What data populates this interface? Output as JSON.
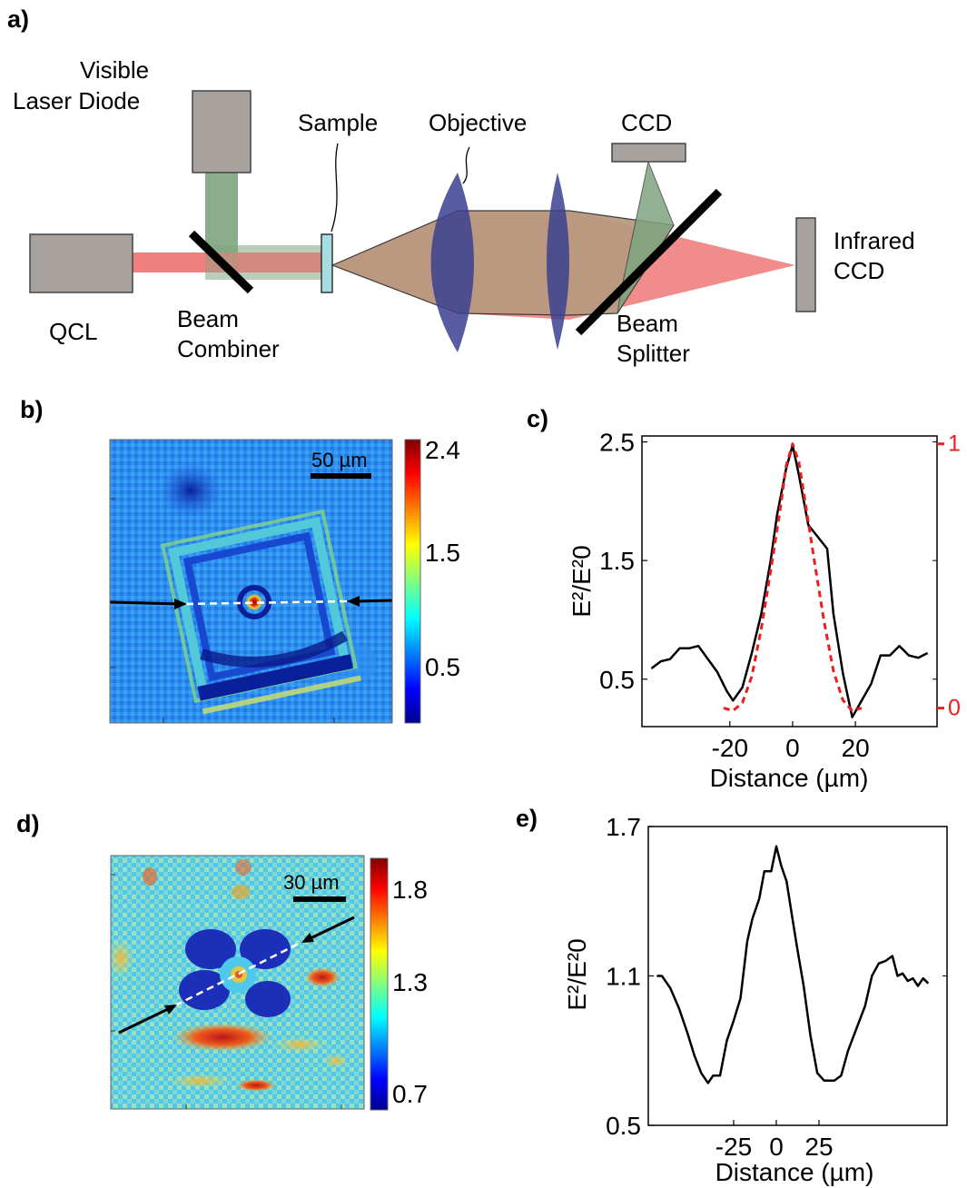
{
  "panel_labels": {
    "a": "a)",
    "b": "b)",
    "c": "c)",
    "d": "d)",
    "e": "e)"
  },
  "setup": {
    "visible_laser_line1": "Visible",
    "visible_laser_line2": "Laser Diode",
    "sample": "Sample",
    "objective": "Objective",
    "ccd": "CCD",
    "infrared_line1": "Infrared",
    "infrared_line2": "CCD",
    "qcl": "QCL",
    "combiner_line1": "Beam",
    "combiner_line2": "Combiner",
    "splitter_line1": "Beam",
    "splitter_line2": "Splitter"
  },
  "colors": {
    "qcl_beam": "#f08080",
    "visible_beam": "#7fa47f",
    "device_gray": "#a8a29e",
    "lens_blue": "#3b3f8f",
    "overlap_brown": "#b89a80",
    "sample_cyan": "#a6dde3",
    "red_fit": "#e8201e"
  },
  "map_b": {
    "scale_label": "50 µm",
    "colorbar_ticks": [
      "2.4",
      "1.5",
      "0.5"
    ]
  },
  "map_d": {
    "scale_label": "30 µm",
    "colorbar_ticks": [
      "1.8",
      "1.3",
      "0.7"
    ]
  },
  "chart_data": [
    {
      "panel": "c",
      "type": "line",
      "xlabel": "Distance (µm)",
      "ylabel": "E²/E²0",
      "xticks": [
        -20,
        0,
        20
      ],
      "yticks": [
        0.5,
        1.5,
        2.5
      ],
      "right_yticks": [
        0,
        1
      ],
      "xlim": [
        -48,
        46
      ],
      "ylim": [
        0.1,
        2.55
      ],
      "right_ylim": [
        -0.07,
        1.03
      ],
      "series": [
        {
          "values": [
            [
              -45,
              0.59
            ],
            [
              -42,
              0.65
            ],
            [
              -39,
              0.67
            ],
            [
              -36,
              0.76
            ],
            [
              -33,
              0.76
            ],
            [
              -30,
              0.78
            ],
            [
              -27,
              0.67
            ],
            [
              -24,
              0.56
            ],
            [
              -21,
              0.4
            ],
            [
              -19,
              0.32
            ],
            [
              -16,
              0.43
            ],
            [
              -13,
              0.72
            ],
            [
              -10,
              1.05
            ],
            [
              -7,
              1.5
            ],
            [
              -5,
              1.88
            ],
            [
              -2,
              2.28
            ],
            [
              0,
              2.47
            ],
            [
              2,
              2.22
            ],
            [
              5,
              1.8
            ],
            [
              8,
              1.7
            ],
            [
              11,
              1.6
            ],
            [
              13,
              1.05
            ],
            [
              16,
              0.55
            ],
            [
              19,
              0.18
            ],
            [
              22,
              0.32
            ],
            [
              25,
              0.46
            ],
            [
              28,
              0.7
            ],
            [
              31,
              0.7
            ],
            [
              34,
              0.78
            ],
            [
              37,
              0.7
            ],
            [
              40,
              0.68
            ],
            [
              43,
              0.72
            ]
          ]
        },
        {
          "axis": "right",
          "style": "dashed",
          "values": [
            [
              -22,
              0.0
            ],
            [
              -19,
              -0.01
            ],
            [
              -16,
              0.02
            ],
            [
              -13,
              0.12
            ],
            [
              -10,
              0.3
            ],
            [
              -7,
              0.52
            ],
            [
              -4,
              0.75
            ],
            [
              -2,
              0.92
            ],
            [
              0,
              1.0
            ],
            [
              2,
              0.93
            ],
            [
              4,
              0.78
            ],
            [
              7,
              0.55
            ],
            [
              10,
              0.33
            ],
            [
              13,
              0.14
            ],
            [
              16,
              0.03
            ],
            [
              19,
              -0.01
            ],
            [
              22,
              0.0
            ]
          ]
        }
      ]
    },
    {
      "panel": "e",
      "type": "line",
      "xlabel": "Distance (µm)",
      "ylabel": "E²/E²0",
      "xticks": [
        -25,
        0,
        25
      ],
      "yticks": [
        0.5,
        1.1,
        1.7
      ],
      "xlim": [
        -75,
        100
      ],
      "ylim": [
        0.5,
        1.7
      ],
      "series": [
        {
          "values": [
            [
              -70,
              1.1
            ],
            [
              -67,
              1.1
            ],
            [
              -62,
              1.05
            ],
            [
              -57,
              0.97
            ],
            [
              -52,
              0.87
            ],
            [
              -48,
              0.78
            ],
            [
              -44,
              0.71
            ],
            [
              -40,
              0.67
            ],
            [
              -37,
              0.7
            ],
            [
              -33,
              0.7
            ],
            [
              -29,
              0.84
            ],
            [
              -25,
              0.92
            ],
            [
              -21,
              1.01
            ],
            [
              -17,
              1.24
            ],
            [
              -14,
              1.33
            ],
            [
              -10,
              1.41
            ],
            [
              -7,
              1.52
            ],
            [
              -3,
              1.52
            ],
            [
              0,
              1.62
            ],
            [
              3,
              1.54
            ],
            [
              6,
              1.48
            ],
            [
              9,
              1.35
            ],
            [
              12,
              1.22
            ],
            [
              16,
              1.06
            ],
            [
              20,
              0.86
            ],
            [
              24,
              0.71
            ],
            [
              28,
              0.68
            ],
            [
              34,
              0.68
            ],
            [
              38,
              0.7
            ],
            [
              42,
              0.8
            ],
            [
              47,
              0.89
            ],
            [
              52,
              0.98
            ],
            [
              56,
              1.1
            ],
            [
              60,
              1.15
            ],
            [
              64,
              1.16
            ],
            [
              68,
              1.18
            ],
            [
              71,
              1.1
            ],
            [
              74,
              1.11
            ],
            [
              77,
              1.08
            ],
            [
              80,
              1.09
            ],
            [
              83,
              1.06
            ],
            [
              86,
              1.09
            ],
            [
              89,
              1.07
            ]
          ]
        }
      ]
    }
  ]
}
